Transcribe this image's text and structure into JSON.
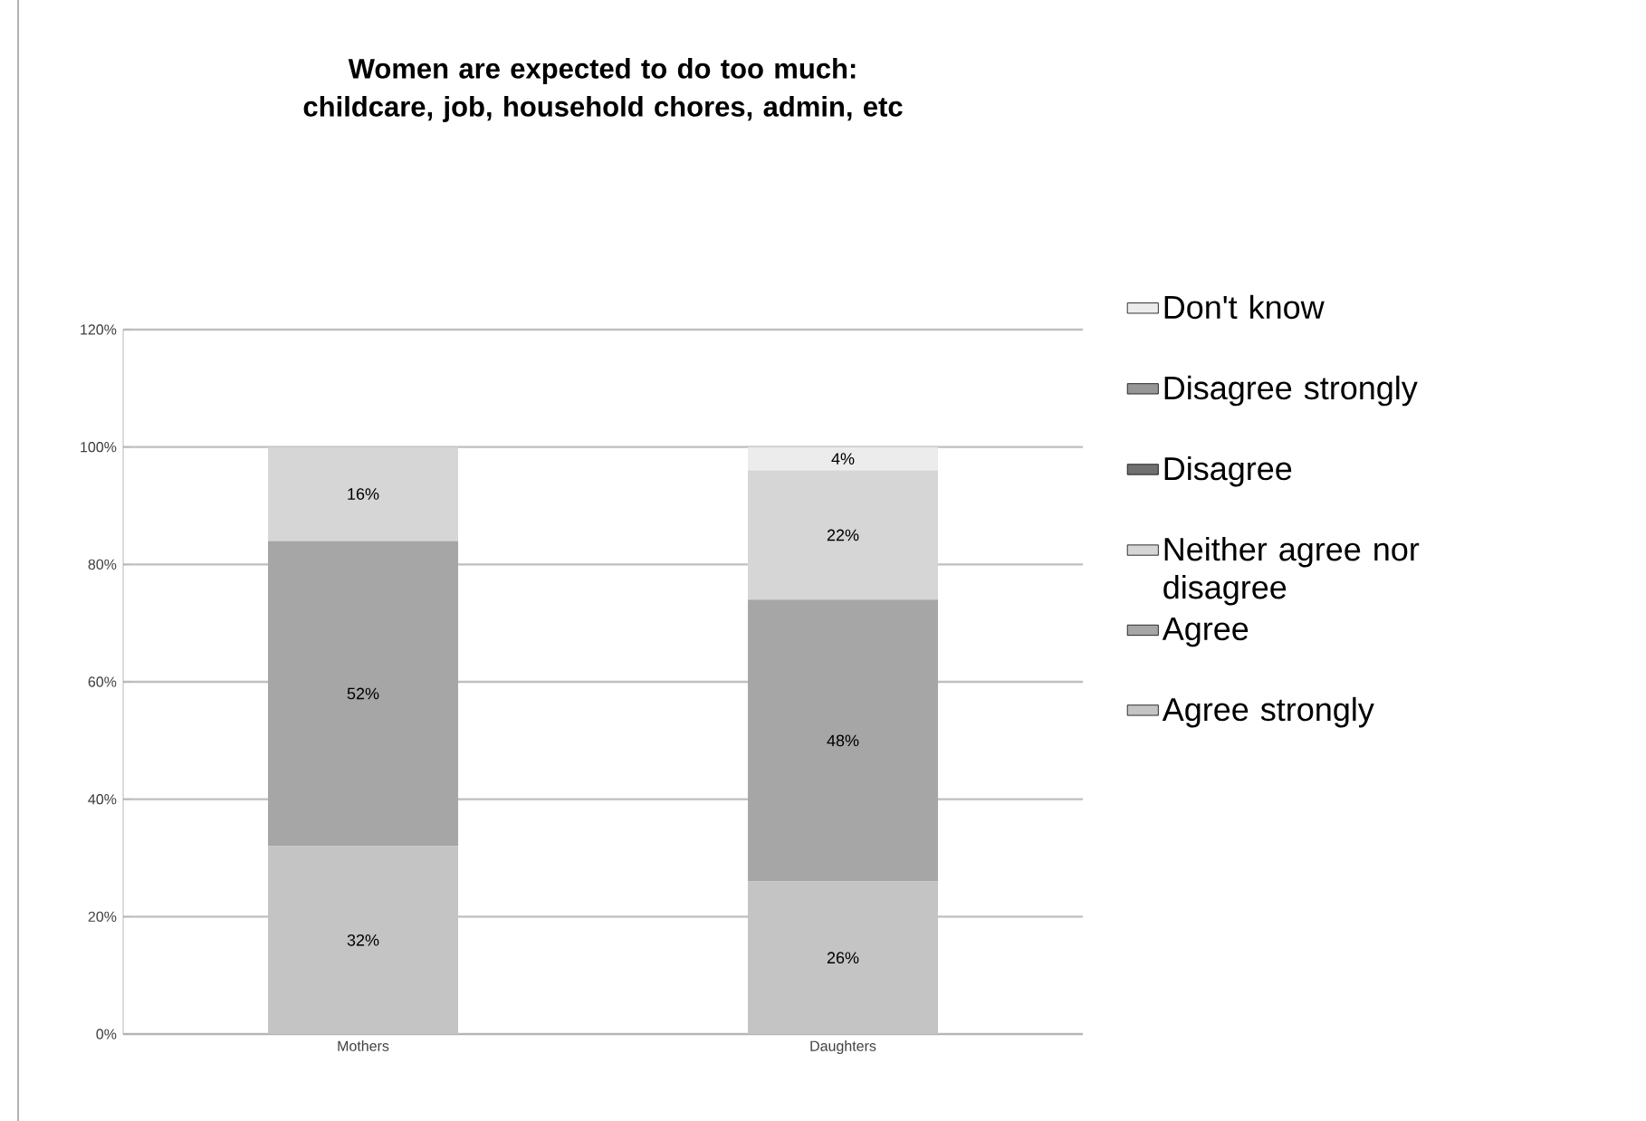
{
  "chart_data": {
    "type": "bar",
    "stacked": true,
    "title": "Women are expected to do too much: childcare, job, household chores, admin, etc",
    "categories": [
      "Mothers",
      "Daughters"
    ],
    "series": [
      {
        "name": "Agree strongly",
        "color": "#c4c4c4",
        "values": [
          32,
          26
        ],
        "value_labels": [
          "32%",
          "26%"
        ]
      },
      {
        "name": "Agree",
        "color": "#a6a6a6",
        "values": [
          52,
          48
        ],
        "value_labels": [
          "52%",
          "48%"
        ]
      },
      {
        "name": "Neither agree nor disagree",
        "color": "#d6d6d6",
        "values": [
          16,
          22
        ],
        "value_labels": [
          "16%",
          "22%"
        ]
      },
      {
        "name": "Disagree",
        "color": "#707070",
        "values": [
          0,
          0
        ],
        "value_labels": [
          null,
          null
        ]
      },
      {
        "name": "Disagree strongly",
        "color": "#969696",
        "values": [
          0,
          0
        ],
        "value_labels": [
          null,
          null
        ]
      },
      {
        "name": "Don't know",
        "color": "#ececec",
        "values": [
          0,
          4
        ],
        "value_labels": [
          null,
          "4%"
        ]
      }
    ],
    "ylim": [
      0,
      120
    ],
    "yticks": [
      {
        "value": 0,
        "label": "0%"
      },
      {
        "value": 20,
        "label": "20%"
      },
      {
        "value": 40,
        "label": "40%"
      },
      {
        "value": 60,
        "label": "60%"
      },
      {
        "value": 80,
        "label": "80%"
      },
      {
        "value": 100,
        "label": "100%"
      },
      {
        "value": 120,
        "label": "120%"
      }
    ],
    "grid": "y",
    "legend": "right"
  }
}
